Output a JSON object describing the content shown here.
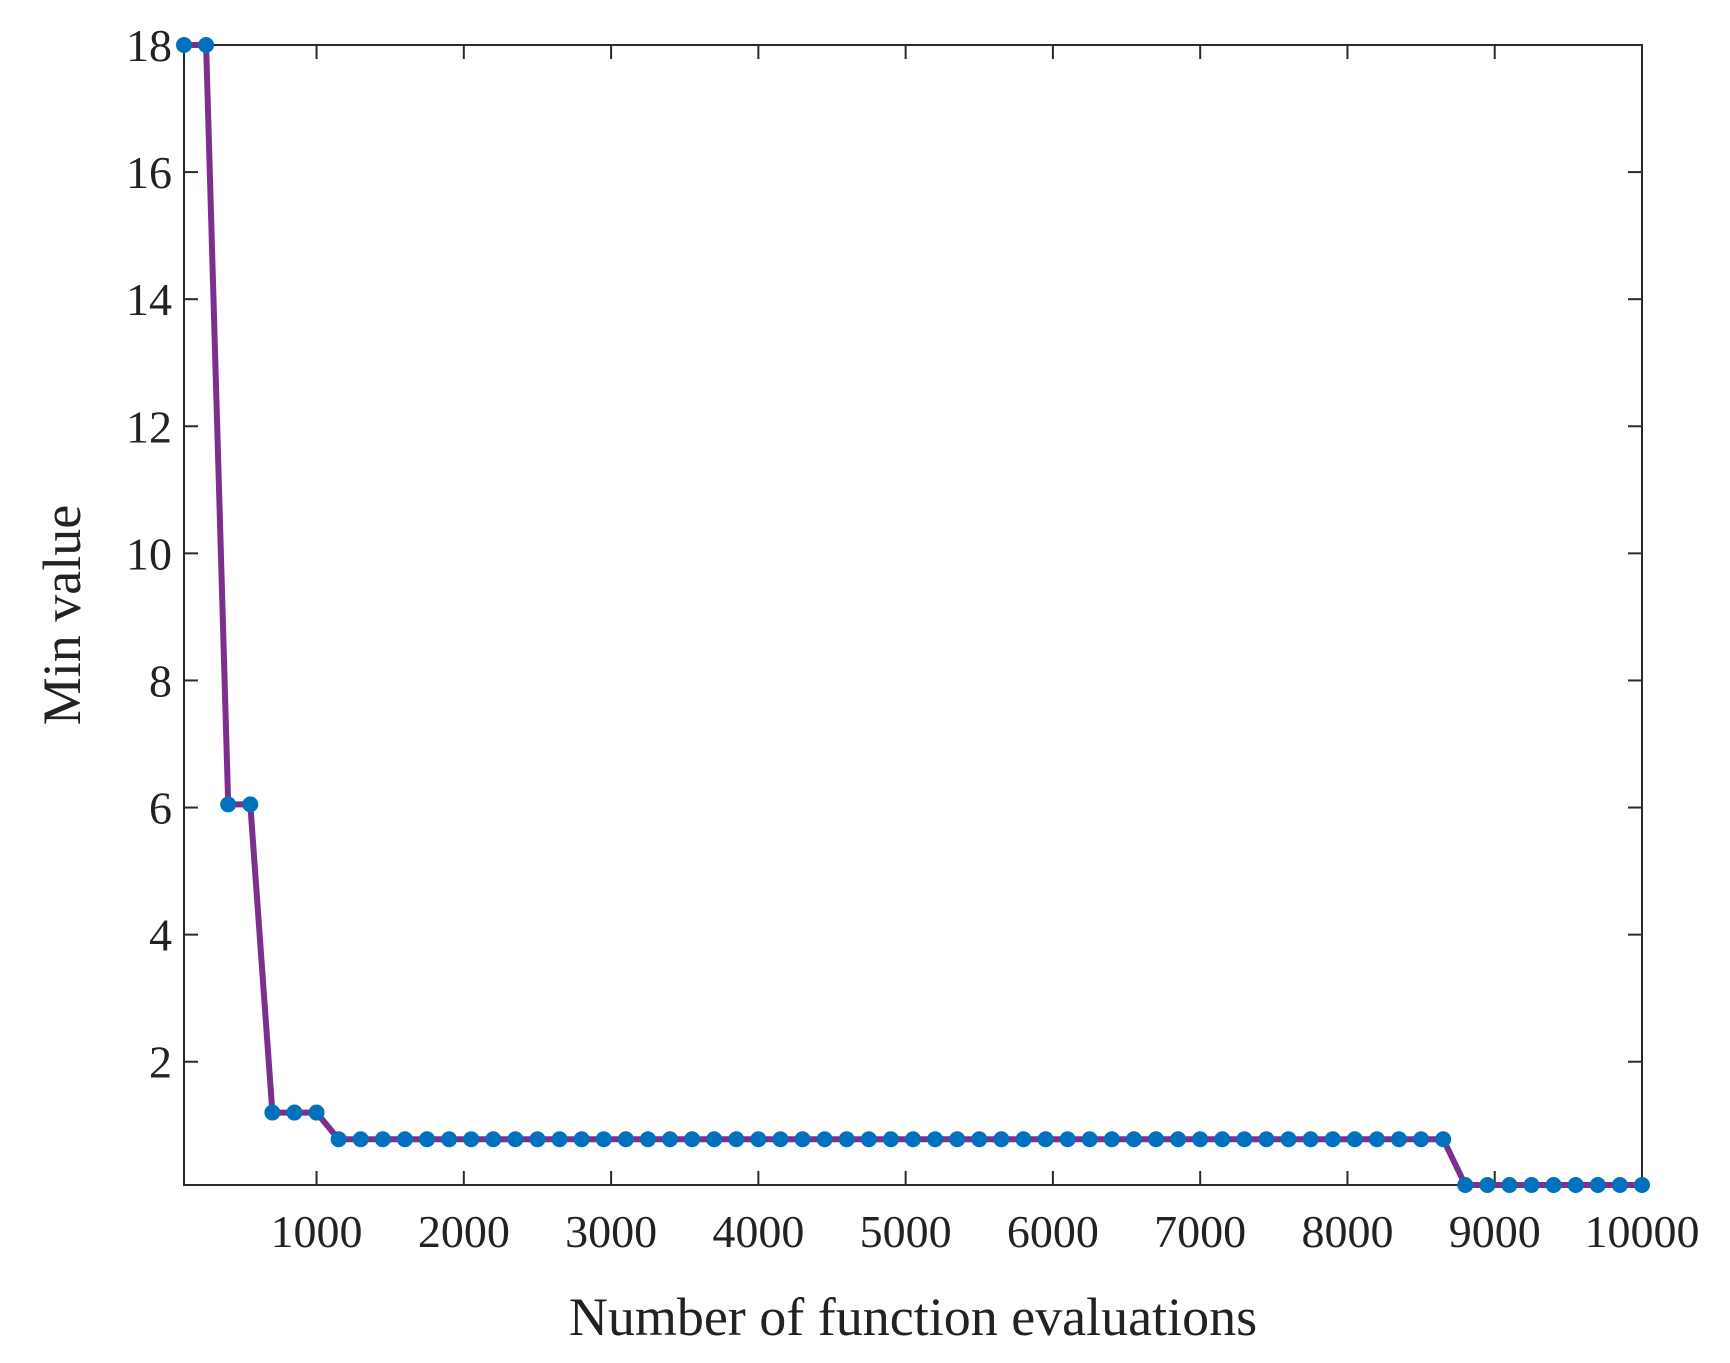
{
  "chart_data": {
    "type": "line",
    "title": "",
    "xlabel": "Number of function evaluations",
    "ylabel": "Min value",
    "xlim": [
      100,
      10000
    ],
    "ylim": [
      0.06,
      18
    ],
    "xticks": [
      1000,
      2000,
      3000,
      4000,
      5000,
      6000,
      7000,
      8000,
      9000,
      10000
    ],
    "yticks": [
      2,
      4,
      6,
      8,
      10,
      12,
      14,
      16,
      18
    ],
    "grid": false,
    "legend": "none",
    "line_color": "#7e2f8e",
    "marker_color": "#0072bd",
    "series": [
      {
        "x": [
          100,
          250,
          400,
          550,
          700,
          850,
          1000,
          1150,
          1300,
          1450,
          1600,
          1750,
          1900,
          2050,
          2200,
          2350,
          2500,
          2650,
          2800,
          2950,
          3100,
          3250,
          3400,
          3550,
          3700,
          3850,
          4000,
          4150,
          4300,
          4450,
          4600,
          4750,
          4900,
          5050,
          5200,
          5350,
          5500,
          5650,
          5800,
          5950,
          6100,
          6250,
          6400,
          6550,
          6700,
          6850,
          7000,
          7150,
          7300,
          7450,
          7600,
          7750,
          7900,
          8050,
          8200,
          8350,
          8500,
          8650,
          8800,
          8950,
          9100,
          9250,
          9400,
          9550,
          9700,
          9850,
          10000
        ],
        "y": [
          18,
          18,
          6.05,
          6.05,
          1.2,
          1.2,
          1.2,
          0.78,
          0.78,
          0.78,
          0.78,
          0.78,
          0.78,
          0.78,
          0.78,
          0.78,
          0.78,
          0.78,
          0.78,
          0.78,
          0.78,
          0.78,
          0.78,
          0.78,
          0.78,
          0.78,
          0.78,
          0.78,
          0.78,
          0.78,
          0.78,
          0.78,
          0.78,
          0.78,
          0.78,
          0.78,
          0.78,
          0.78,
          0.78,
          0.78,
          0.78,
          0.78,
          0.78,
          0.78,
          0.78,
          0.78,
          0.78,
          0.78,
          0.78,
          0.78,
          0.78,
          0.78,
          0.78,
          0.78,
          0.78,
          0.78,
          0.78,
          0.78,
          0.06,
          0.06,
          0.06,
          0.06,
          0.06,
          0.06,
          0.06,
          0.06,
          0.06
        ]
      }
    ]
  }
}
